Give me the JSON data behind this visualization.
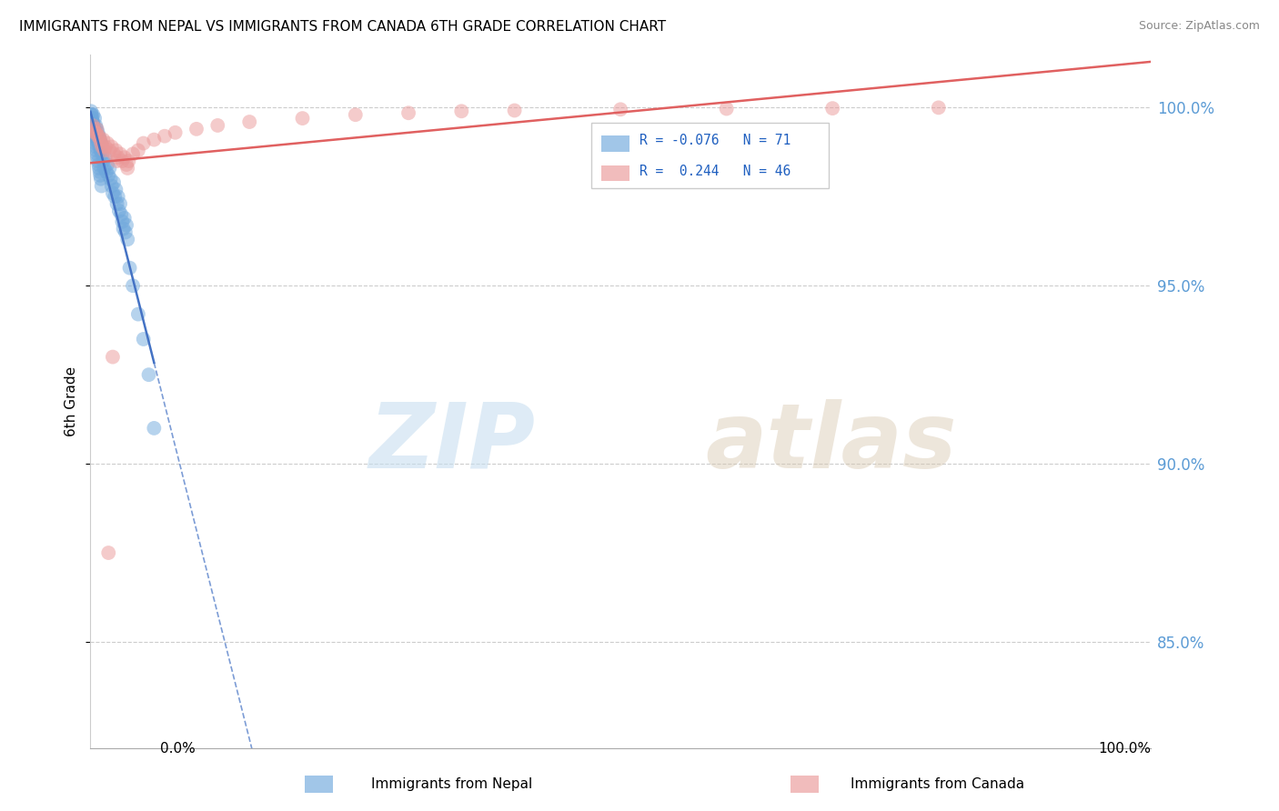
{
  "title": "IMMIGRANTS FROM NEPAL VS IMMIGRANTS FROM CANADA 6TH GRADE CORRELATION CHART",
  "source": "Source: ZipAtlas.com",
  "ylabel": "6th Grade",
  "legend_nepal": "Immigrants from Nepal",
  "legend_canada": "Immigrants from Canada",
  "R_nepal": -0.076,
  "N_nepal": 71,
  "R_canada": 0.244,
  "N_canada": 46,
  "xlim": [
    0.0,
    100.0
  ],
  "ylim": [
    82.0,
    101.5
  ],
  "yticks": [
    85.0,
    90.0,
    95.0,
    100.0
  ],
  "ytick_labels": [
    "85.0%",
    "90.0%",
    "95.0%",
    "100.0%"
  ],
  "color_nepal": "#6fa8dc",
  "color_canada": "#ea9999",
  "trendline_nepal_color": "#4472c4",
  "trendline_canada_color": "#e06060",
  "watermark_zip": "ZIP",
  "watermark_atlas": "atlas",
  "nepal_x": [
    0.1,
    0.15,
    0.2,
    0.25,
    0.3,
    0.35,
    0.4,
    0.45,
    0.5,
    0.55,
    0.6,
    0.65,
    0.7,
    0.75,
    0.8,
    0.85,
    0.9,
    0.95,
    1.0,
    1.1,
    1.2,
    1.3,
    1.4,
    1.5,
    1.6,
    1.7,
    1.8,
    1.9,
    2.0,
    2.1,
    2.2,
    2.3,
    2.4,
    2.5,
    2.6,
    2.7,
    2.8,
    2.9,
    3.0,
    3.1,
    3.2,
    3.3,
    3.4,
    3.5,
    3.7,
    4.0,
    4.5,
    5.0,
    5.5,
    6.0,
    0.05,
    0.1,
    0.12,
    0.18,
    0.22,
    0.28,
    0.32,
    0.38,
    0.42,
    0.48,
    0.52,
    0.58,
    0.62,
    0.68,
    0.72,
    0.78,
    0.82,
    0.88,
    0.92,
    0.98,
    1.05
  ],
  "nepal_y": [
    99.8,
    99.7,
    99.6,
    99.8,
    99.5,
    99.4,
    99.7,
    99.3,
    99.5,
    99.2,
    99.4,
    99.1,
    99.3,
    99.0,
    99.2,
    98.9,
    99.1,
    98.8,
    99.0,
    98.7,
    98.5,
    98.3,
    98.6,
    98.2,
    98.4,
    98.1,
    98.3,
    98.0,
    97.8,
    97.6,
    97.9,
    97.5,
    97.7,
    97.3,
    97.5,
    97.1,
    97.3,
    97.0,
    96.8,
    96.6,
    96.9,
    96.5,
    96.7,
    96.3,
    95.5,
    95.0,
    94.2,
    93.5,
    92.5,
    91.0,
    99.9,
    99.8,
    99.7,
    99.6,
    99.5,
    99.4,
    99.3,
    99.2,
    99.1,
    99.0,
    98.9,
    98.8,
    98.7,
    98.6,
    98.5,
    98.4,
    98.3,
    98.2,
    98.1,
    98.0,
    97.8
  ],
  "canada_x": [
    0.2,
    0.4,
    0.6,
    0.8,
    1.0,
    1.2,
    1.4,
    1.6,
    1.8,
    2.0,
    2.2,
    2.4,
    2.6,
    2.8,
    3.0,
    3.2,
    3.4,
    3.6,
    4.0,
    4.5,
    5.0,
    6.0,
    7.0,
    8.0,
    10.0,
    12.0,
    15.0,
    20.0,
    25.0,
    30.0,
    35.0,
    40.0,
    50.0,
    60.0,
    70.0,
    80.0,
    0.3,
    0.5,
    0.7,
    0.9,
    1.1,
    1.3,
    1.7,
    2.1,
    2.5,
    3.5
  ],
  "canada_y": [
    99.5,
    99.3,
    99.4,
    99.2,
    99.0,
    99.1,
    98.9,
    99.0,
    98.8,
    98.9,
    98.7,
    98.8,
    98.6,
    98.7,
    98.5,
    98.6,
    98.4,
    98.5,
    98.7,
    98.8,
    99.0,
    99.1,
    99.2,
    99.3,
    99.4,
    99.5,
    99.6,
    99.7,
    99.8,
    99.85,
    99.9,
    99.92,
    99.95,
    99.97,
    99.98,
    100.0,
    99.4,
    99.3,
    99.2,
    99.1,
    98.9,
    98.8,
    87.5,
    93.0,
    98.5,
    98.3
  ]
}
